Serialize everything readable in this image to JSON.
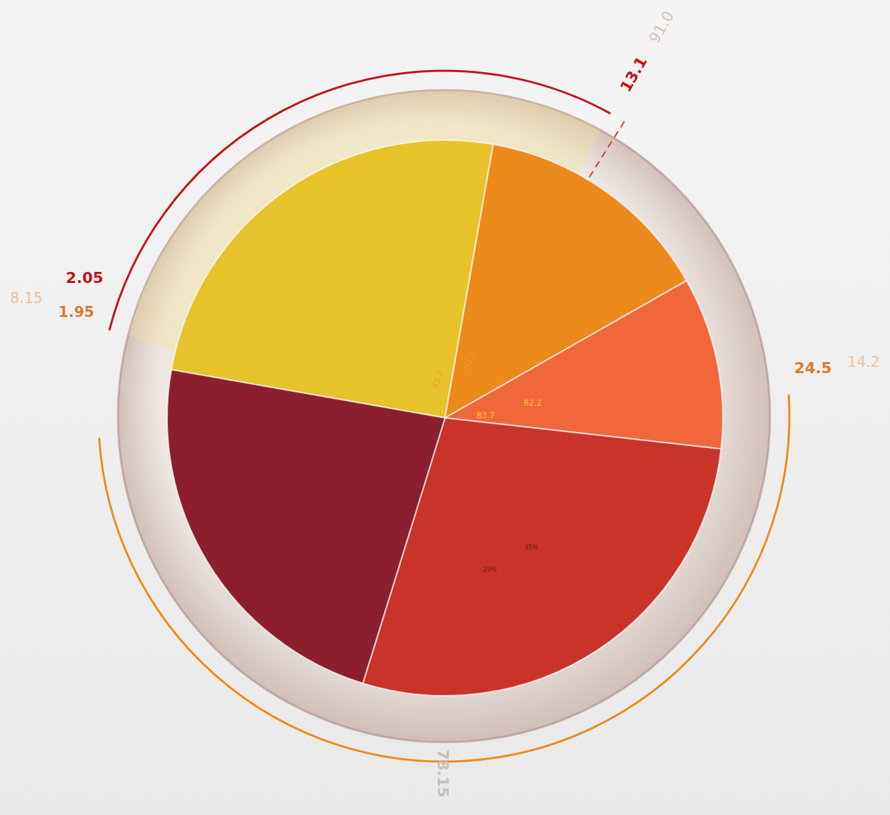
{
  "chart_data": {
    "type": "pie",
    "categories": [
      null,
      null,
      null,
      null,
      null
    ],
    "values": [
      25,
      14,
      10,
      28,
      23
    ],
    "colors": [
      "#e8c22a",
      "#ec8a1c",
      "#f0683a",
      "#c9332a",
      "#8c1f2e"
    ],
    "data_labels": false,
    "annotations": [
      "2.05",
      "13.1",
      "91.0",
      "8.15",
      "1.95",
      "24.5",
      "14.2",
      "78.15",
      "83.7",
      "82.2",
      "83.7",
      "82.2",
      "25%",
      "35%"
    ]
  }
}
